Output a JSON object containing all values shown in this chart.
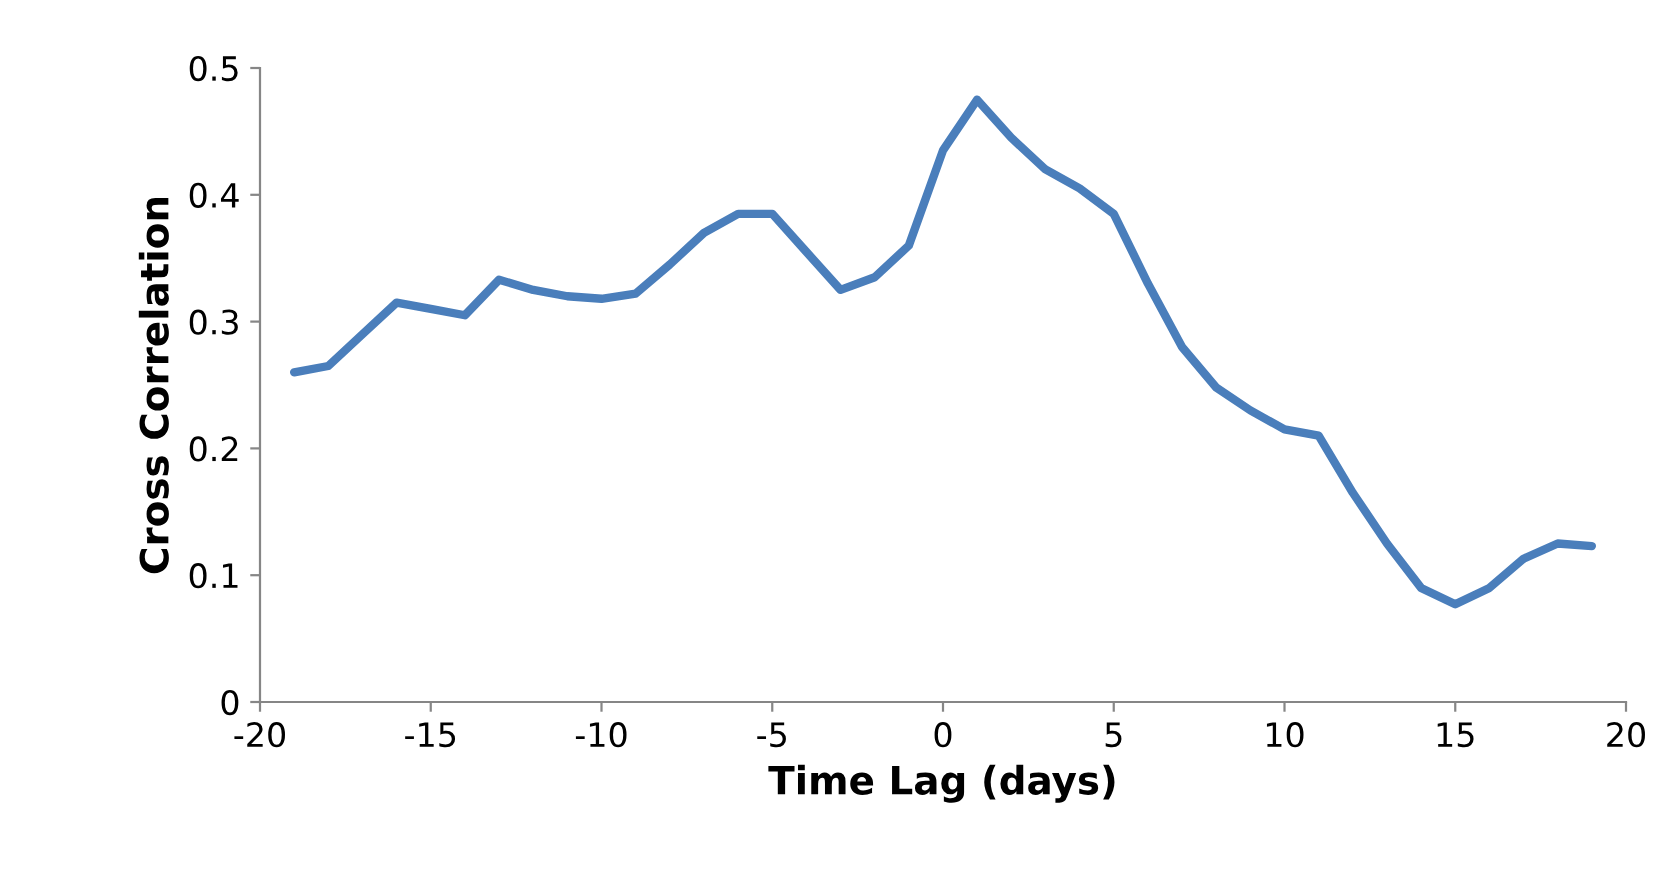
{
  "chart_data": {
    "type": "line",
    "xlabel": "Time Lag (days)",
    "ylabel": "Cross Correlation",
    "x": [
      -19,
      -18,
      -17,
      -16,
      -15,
      -14,
      -13,
      -12,
      -11,
      -10,
      -9,
      -8,
      -7,
      -6,
      -5,
      -4,
      -3,
      -2,
      -1,
      0,
      1,
      2,
      3,
      4,
      5,
      6,
      7,
      8,
      9,
      10,
      11,
      12,
      13,
      14,
      15,
      16,
      17,
      18,
      19
    ],
    "series": [
      {
        "color": "#4a7ebb",
        "values": [
          0.26,
          0.265,
          0.29,
          0.315,
          0.31,
          0.305,
          0.333,
          0.325,
          0.32,
          0.318,
          0.322,
          0.345,
          0.37,
          0.385,
          0.385,
          0.355,
          0.325,
          0.335,
          0.36,
          0.435,
          0.475,
          0.445,
          0.42,
          0.405,
          0.385,
          0.33,
          0.28,
          0.248,
          0.23,
          0.215,
          0.21,
          0.165,
          0.125,
          0.09,
          0.077,
          0.09,
          0.113,
          0.125,
          0.123
        ]
      }
    ],
    "xlim": [
      -20,
      20
    ],
    "xticks": [
      -20,
      -15,
      -10,
      -5,
      0,
      5,
      10,
      15,
      20
    ],
    "ylim": [
      0,
      0.5
    ],
    "yticks": [
      0,
      0.1,
      0.2,
      0.3,
      0.4,
      0.5
    ],
    "grid": false,
    "legend": false,
    "marker": "none",
    "line_style": "solid"
  }
}
